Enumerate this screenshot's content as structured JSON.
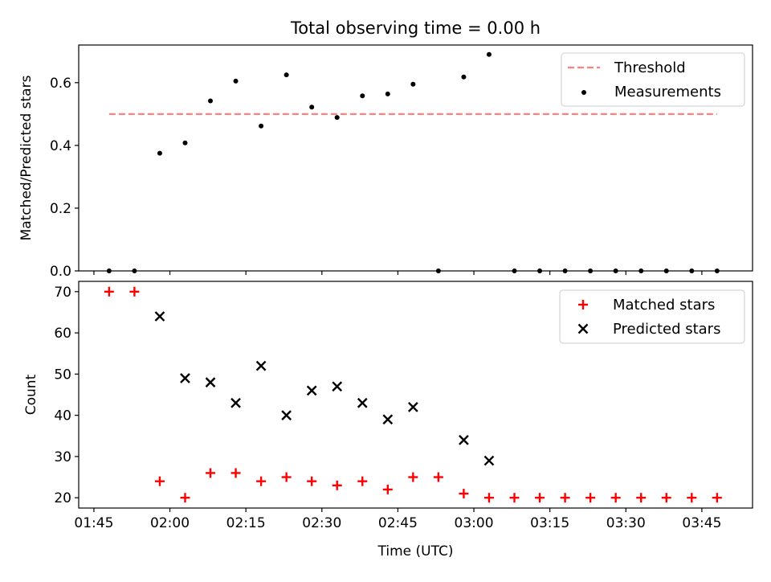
{
  "chart_data": [
    {
      "type": "line+scatter",
      "title": "Total observing time = 0.00 h",
      "ylabel": "Matched/Predicted stars",
      "xlabel": "",
      "ylim": [
        0.0,
        0.72
      ],
      "yticks": [
        0.0,
        0.2,
        0.4,
        0.6
      ],
      "ytick_labels": [
        "0.0",
        "0.2",
        "0.4",
        "0.6"
      ],
      "grid": false,
      "legend": "upper right",
      "series": [
        {
          "name": "Threshold",
          "style": "dashed",
          "color": "#ff8080",
          "x": [
            "01:48",
            "03:48"
          ],
          "y": [
            0.5,
            0.5
          ]
        },
        {
          "name": "Measurements",
          "style": "points",
          "color": "#000000",
          "x": [
            "01:48",
            "01:53",
            "01:58",
            "02:03",
            "02:08",
            "02:13",
            "02:18",
            "02:23",
            "02:28",
            "02:33",
            "02:38",
            "02:43",
            "02:48",
            "02:53",
            "02:58",
            "03:03",
            "03:08",
            "03:13",
            "03:18",
            "03:23",
            "03:28",
            "03:33",
            "03:38",
            "03:43",
            "03:48"
          ],
          "y": [
            0.0,
            0.0,
            0.375,
            0.408,
            0.542,
            0.605,
            0.462,
            0.625,
            0.522,
            0.489,
            0.558,
            0.564,
            0.595,
            0.0,
            0.618,
            0.69,
            0.0,
            0.0,
            0.0,
            0.0,
            0.0,
            0.0,
            0.0,
            0.0,
            0.0
          ]
        }
      ]
    },
    {
      "type": "scatter",
      "title": "",
      "xlabel": "Time (UTC)",
      "ylabel": "Count",
      "ylim": [
        17.5,
        72.5
      ],
      "yticks": [
        20,
        30,
        40,
        50,
        60,
        70
      ],
      "ytick_labels": [
        "20",
        "30",
        "40",
        "50",
        "60",
        "70"
      ],
      "xticks": [
        "01:45",
        "02:00",
        "02:15",
        "02:30",
        "02:45",
        "03:00",
        "03:15",
        "03:30",
        "03:45"
      ],
      "xtick_labels": [
        "01:45",
        "02:00",
        "02:15",
        "02:30",
        "02:45",
        "03:00",
        "03:15",
        "03:30",
        "03:45"
      ],
      "xlim": [
        "01:42",
        "03:55"
      ],
      "grid": false,
      "legend": "upper right",
      "series": [
        {
          "name": "Matched stars",
          "marker": "+",
          "color": "#ff0000",
          "x": [
            "01:48",
            "01:53",
            "01:58",
            "02:03",
            "02:08",
            "02:13",
            "02:18",
            "02:23",
            "02:28",
            "02:33",
            "02:38",
            "02:43",
            "02:48",
            "02:53",
            "02:58",
            "03:03",
            "03:08",
            "03:13",
            "03:18",
            "03:23",
            "03:28",
            "03:33",
            "03:38",
            "03:43",
            "03:48"
          ],
          "y": [
            70,
            70,
            24,
            20,
            26,
            26,
            24,
            25,
            24,
            23,
            24,
            22,
            25,
            25,
            21,
            20,
            20,
            20,
            20,
            20,
            20,
            20,
            20,
            20,
            20
          ]
        },
        {
          "name": "Predicted stars",
          "marker": "x",
          "color": "#000000",
          "x": [
            "01:58",
            "02:03",
            "02:08",
            "02:13",
            "02:18",
            "02:23",
            "02:28",
            "02:33",
            "02:38",
            "02:43",
            "02:48",
            "02:58",
            "03:03"
          ],
          "y": [
            64,
            49,
            48,
            43,
            52,
            40,
            46,
            47,
            43,
            39,
            42,
            34,
            29
          ]
        }
      ]
    }
  ]
}
